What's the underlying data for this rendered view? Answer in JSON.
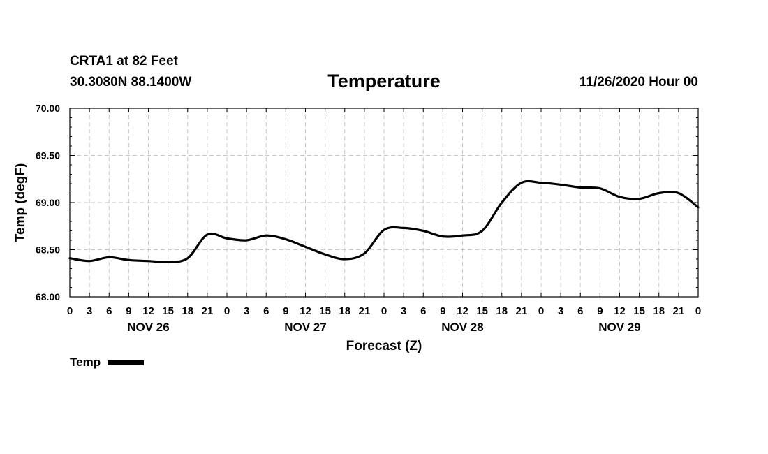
{
  "header": {
    "station": "CRTA1 at 82 Feet",
    "coords": "30.3080N 88.1400W",
    "title": "Temperature",
    "datetime": "11/26/2020 Hour 00"
  },
  "legend": {
    "label": "Temp"
  },
  "chart_data": {
    "type": "line",
    "title": "Temperature",
    "xlabel": "Forecast (Z)",
    "ylabel": "Temp (degF)",
    "ylim": [
      68.0,
      70.0
    ],
    "xlim_hours": [
      0,
      96
    ],
    "grid": true,
    "legend_placement": "bottom-left",
    "yticks": [
      "68.00",
      "68.50",
      "69.00",
      "69.50",
      "70.00"
    ],
    "xtick_labels": [
      "0",
      "3",
      "6",
      "9",
      "12",
      "15",
      "18",
      "21",
      "0",
      "3",
      "6",
      "9",
      "12",
      "15",
      "18",
      "21",
      "0",
      "3",
      "6",
      "9",
      "12",
      "15",
      "18",
      "21",
      "0",
      "3",
      "6",
      "9",
      "12",
      "15",
      "18",
      "21",
      "0"
    ],
    "day_labels": [
      "NOV 26",
      "NOV 27",
      "NOV 28",
      "NOV 29"
    ],
    "series": [
      {
        "name": "Temp",
        "color": "#000000",
        "x": [
          0,
          3,
          6,
          9,
          12,
          15,
          18,
          21,
          24,
          27,
          30,
          33,
          36,
          39,
          42,
          45,
          48,
          51,
          54,
          57,
          60,
          63,
          66,
          69,
          72,
          75,
          78,
          81,
          84,
          87,
          90,
          93,
          96
        ],
        "y": [
          68.41,
          68.38,
          68.42,
          68.39,
          68.38,
          68.37,
          68.41,
          68.66,
          68.62,
          68.6,
          68.65,
          68.61,
          68.53,
          68.45,
          68.4,
          68.46,
          68.71,
          68.73,
          68.7,
          68.64,
          68.65,
          68.7,
          69.0,
          69.21,
          69.21,
          69.19,
          69.16,
          69.15,
          69.06,
          69.04,
          69.1,
          69.1,
          68.95
        ]
      }
    ]
  }
}
